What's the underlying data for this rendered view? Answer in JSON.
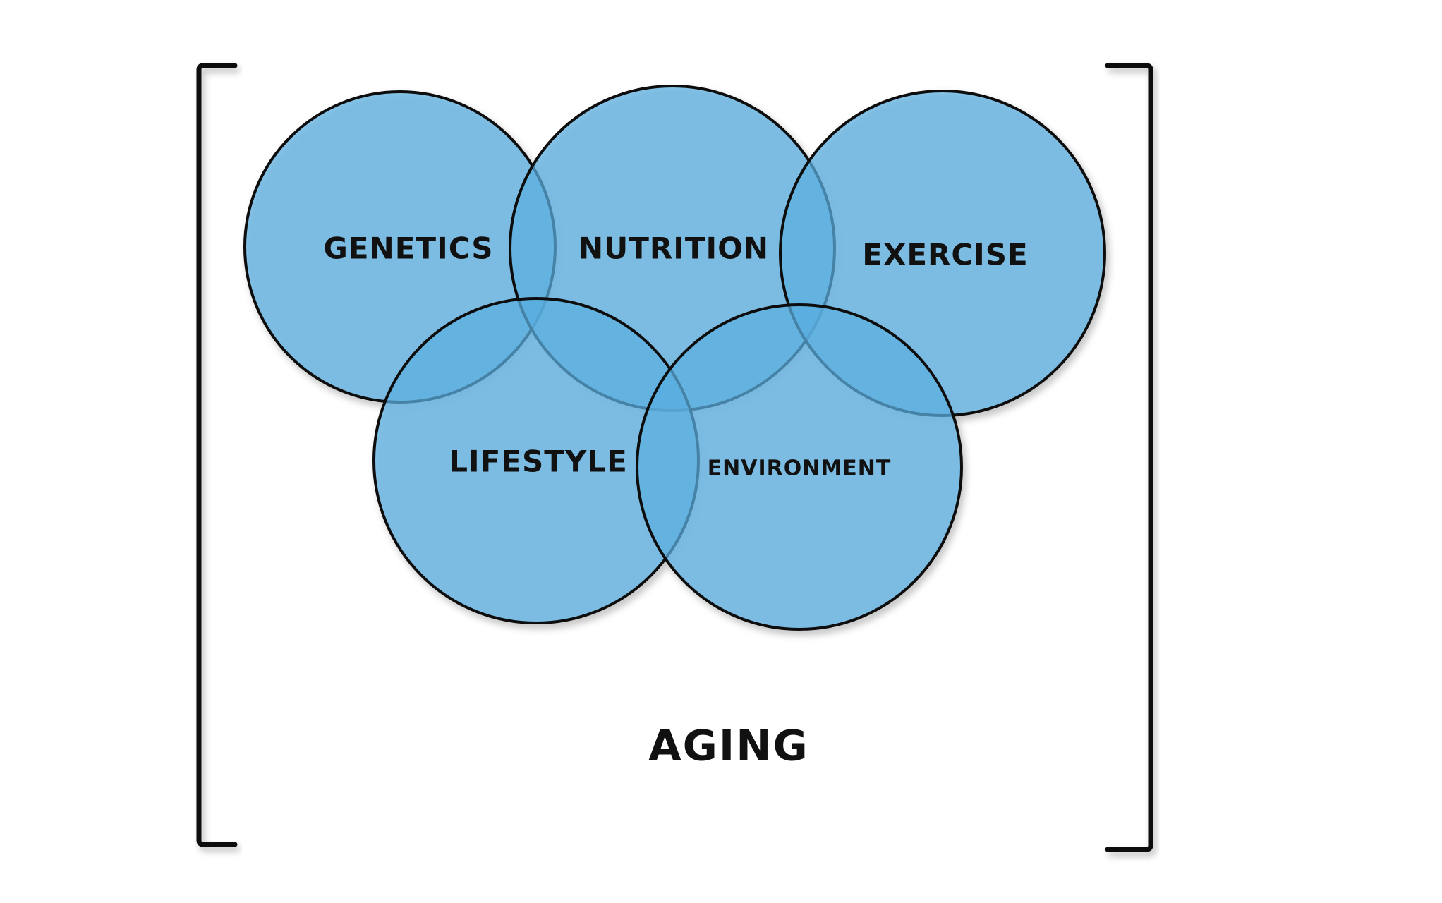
{
  "colors": {
    "circle_fill": "#5aafe0",
    "background": "#ffffff",
    "outline": "#111111"
  },
  "factors": {
    "genetics": "GENETICS",
    "nutrition": "NUTRITION",
    "exercise": "EXERCISE",
    "lifestyle": "LIFESTYLE",
    "environment": "ENVIRONMENT"
  },
  "outcome": "AGING"
}
